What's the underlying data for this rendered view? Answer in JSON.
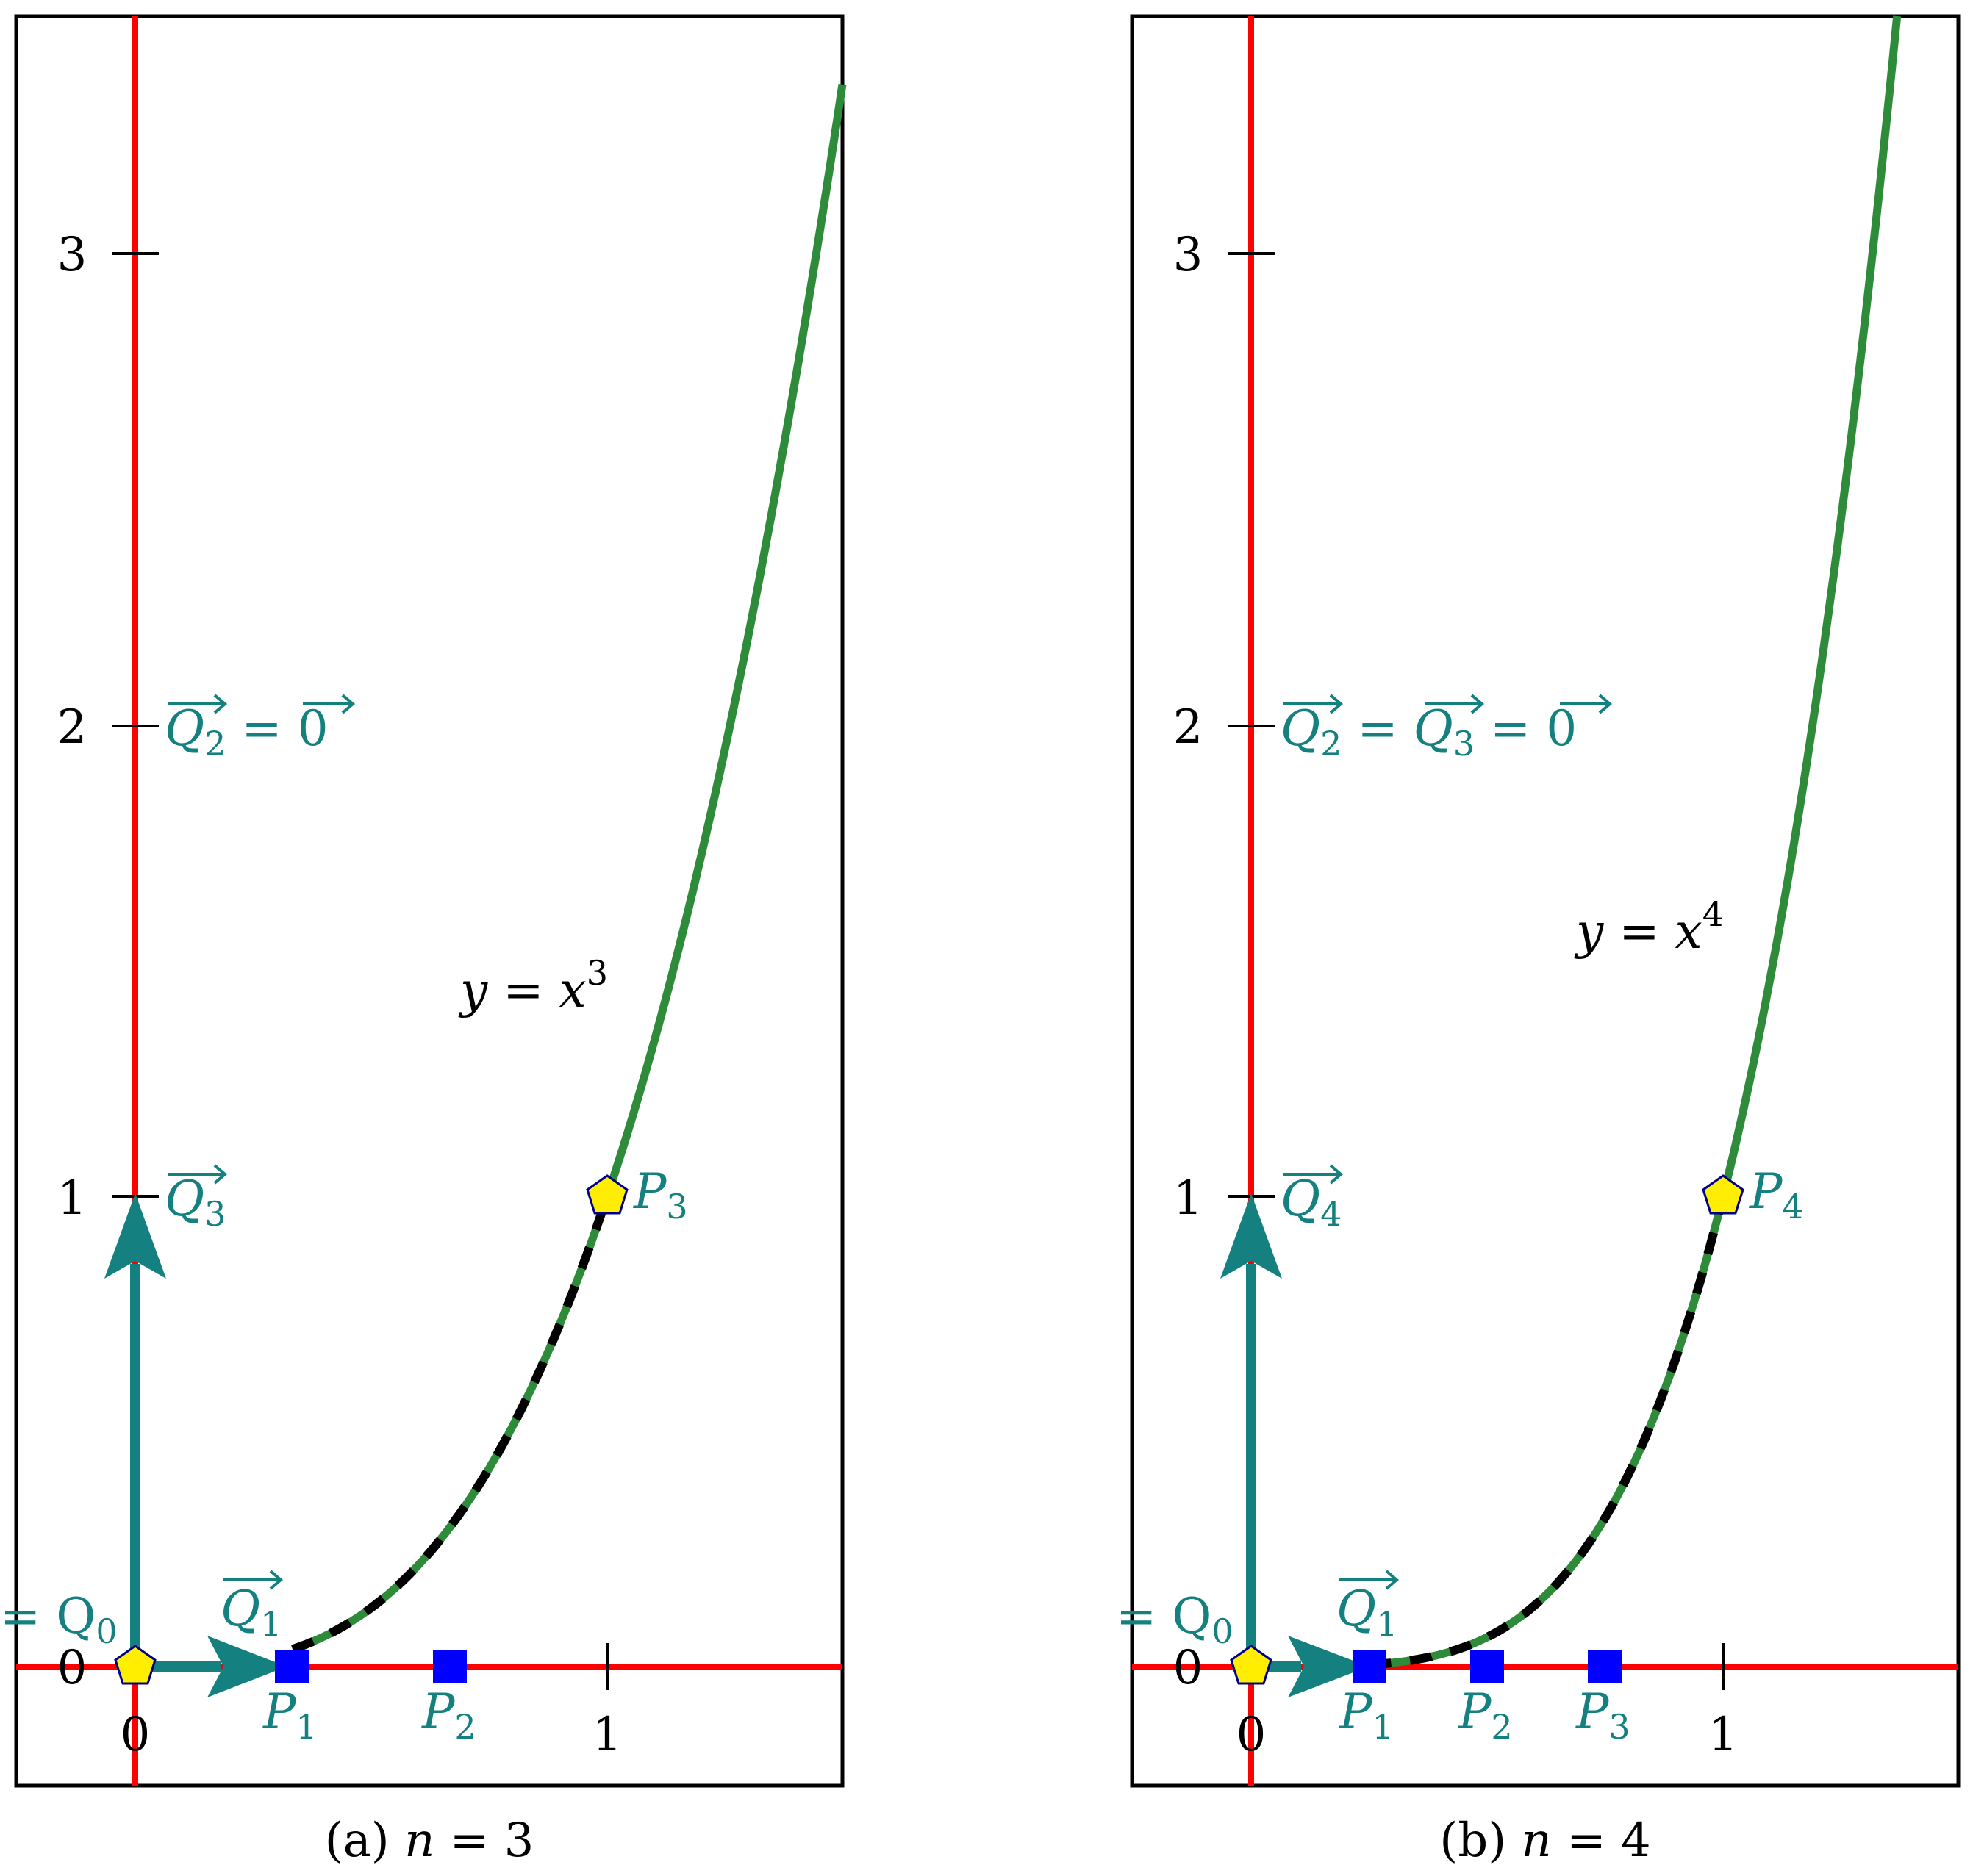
{
  "colors": {
    "axis": "#ff0000",
    "curve": "#2e8b3a",
    "dashed_segment": "#000000",
    "vector": "#148080",
    "label": "#148080",
    "square_marker": "#0000ff",
    "pentagon_marker": "#ffee00",
    "pentagon_edge": "#00008b"
  },
  "panels": [
    {
      "caption": {
        "prefix": "(a) ",
        "var": "n",
        "rest": " = 3"
      },
      "exponent": 3,
      "x_ticks": [
        "0",
        "1"
      ],
      "y_ticks": [
        "0",
        "1",
        "2",
        "3"
      ],
      "curve_label": {
        "base": "y = x",
        "exp": "3"
      },
      "origin_label": {
        "text": "= Q",
        "sub": "0"
      },
      "vector_labels": [
        {
          "name": "Q",
          "sub": "1",
          "position": "near-origin"
        },
        {
          "name": "Q",
          "sub": "2",
          "suffix": " = 0",
          "position": "at-2"
        },
        {
          "name": "Q",
          "sub": "3",
          "position": "at-1"
        }
      ],
      "square_points": [
        {
          "x": 0.3333,
          "y": 0,
          "name": "P",
          "sub": "1"
        },
        {
          "x": 0.6667,
          "y": 0,
          "name": "P",
          "sub": "2"
        }
      ],
      "end_point": {
        "x": 1,
        "y": 1,
        "name": "P",
        "sub": "3"
      },
      "vectors": [
        {
          "dx": 0.3333,
          "dy": 0
        },
        {
          "dx": 0,
          "dy": 1
        }
      ]
    },
    {
      "caption": {
        "prefix": "(b) ",
        "var": "n",
        "rest": " = 4"
      },
      "exponent": 4,
      "x_ticks": [
        "0",
        "1"
      ],
      "y_ticks": [
        "0",
        "1",
        "2",
        "3"
      ],
      "curve_label": {
        "base": "y = x",
        "exp": "4"
      },
      "origin_label": {
        "text": "= Q",
        "sub": "0"
      },
      "vector_labels": [
        {
          "name": "Q",
          "sub": "1",
          "position": "near-origin"
        },
        {
          "name": "Q",
          "sub": "2",
          "middle": " = ",
          "name2": "Q",
          "sub2": "3",
          "suffix": " = 0",
          "position": "at-2"
        },
        {
          "name": "Q",
          "sub": "4",
          "position": "at-1"
        }
      ],
      "square_points": [
        {
          "x": 0.25,
          "y": 0,
          "name": "P",
          "sub": "1"
        },
        {
          "x": 0.5,
          "y": 0,
          "name": "P",
          "sub": "2"
        },
        {
          "x": 0.75,
          "y": 0,
          "name": "P",
          "sub": "3"
        }
      ],
      "end_point": {
        "x": 1,
        "y": 1,
        "name": "P",
        "sub": "4"
      },
      "vectors": [
        {
          "dx": 0.25,
          "dy": 0
        },
        {
          "dx": 0,
          "dy": 1
        }
      ]
    }
  ]
}
